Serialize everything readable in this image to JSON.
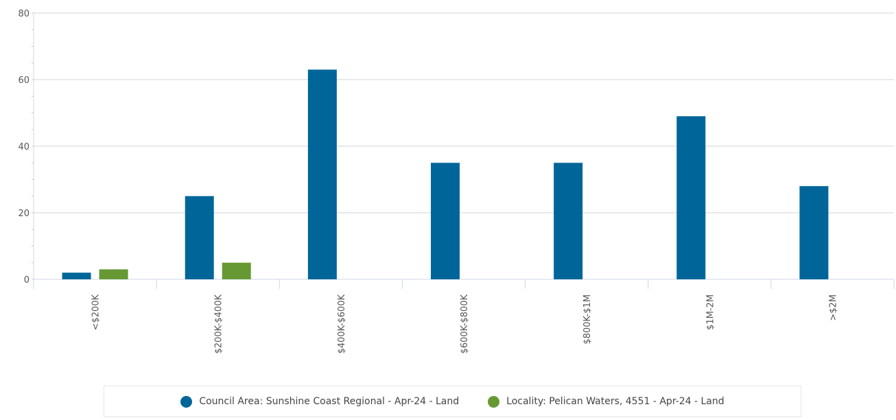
{
  "chart_data": {
    "type": "bar",
    "categories": [
      "<$200K",
      "$200K-$400K",
      "$400K-$600K",
      "$600K-$800K",
      "$800K-$1M",
      "$1M-2M",
      ">$2M"
    ],
    "series": [
      {
        "name": "Council Area: Sunshine Coast Regional - Apr-24 - Land",
        "color": "#006699",
        "values": [
          2,
          25,
          63,
          35,
          35,
          49,
          28
        ]
      },
      {
        "name": "Locality: Pelican Waters, 4551 - Apr-24 - Land",
        "color": "#669933",
        "values": [
          3,
          5,
          0,
          0,
          0,
          0,
          0
        ]
      }
    ],
    "ylim": [
      0,
      80
    ],
    "yticks": [
      "0",
      "20",
      "40",
      "60",
      "80"
    ],
    "grid": true,
    "legend_position": "bottom"
  }
}
